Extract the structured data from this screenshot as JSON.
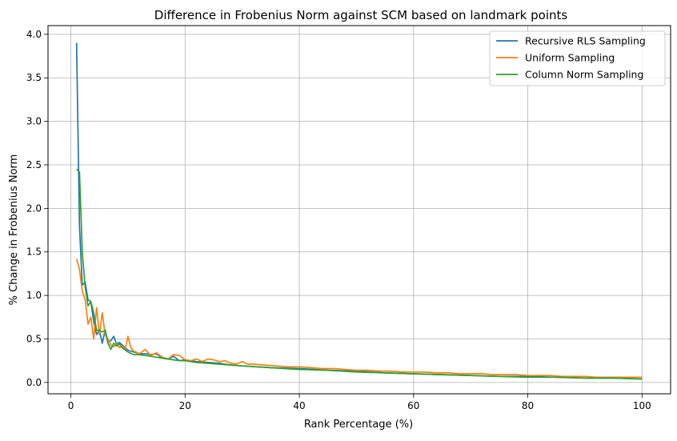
{
  "chart_data": {
    "type": "line",
    "title": "Difference in Frobenius Norm against SCM based on landmark points",
    "xlabel": "Rank Percentage (%)",
    "ylabel": "% Change in Frobenius Norm",
    "xlim": [
      -4.0,
      105.0
    ],
    "ylim": [
      -0.13,
      4.1
    ],
    "xticks": [
      0,
      20,
      40,
      60,
      80,
      100
    ],
    "yticks": [
      0.0,
      0.5,
      1.0,
      1.5,
      2.0,
      2.5,
      3.0,
      3.5,
      4.0
    ],
    "xtick_labels": [
      "0",
      "20",
      "40",
      "60",
      "80",
      "100"
    ],
    "ytick_labels": [
      "0.0",
      "0.5",
      "1.0",
      "1.5",
      "2.0",
      "2.5",
      "3.0",
      "3.5",
      "4.0"
    ],
    "grid": true,
    "legend_position": "top-right",
    "series": [
      {
        "name": "Recursive RLS Sampling",
        "color": "#1f77b4",
        "x": [
          1,
          1.5,
          2,
          2.5,
          3,
          3.5,
          4,
          4.5,
          5,
          5.5,
          6,
          6.5,
          7,
          7.5,
          8,
          8.5,
          9,
          10,
          11,
          12,
          13,
          14,
          15,
          16,
          17,
          18,
          19,
          20,
          22,
          24,
          26,
          28,
          30,
          35,
          40,
          45,
          50,
          55,
          60,
          65,
          70,
          75,
          80,
          85,
          90,
          95,
          100
        ],
        "y": [
          3.9,
          1.8,
          1.12,
          1.15,
          0.95,
          0.93,
          0.7,
          0.55,
          0.6,
          0.45,
          0.6,
          0.47,
          0.48,
          0.53,
          0.44,
          0.46,
          0.43,
          0.37,
          0.35,
          0.33,
          0.33,
          0.32,
          0.33,
          0.28,
          0.27,
          0.3,
          0.25,
          0.26,
          0.24,
          0.23,
          0.22,
          0.2,
          0.19,
          0.17,
          0.16,
          0.14,
          0.13,
          0.11,
          0.1,
          0.09,
          0.08,
          0.07,
          0.07,
          0.06,
          0.05,
          0.05,
          0.04
        ]
      },
      {
        "name": "Uniform Sampling",
        "color": "#ff7f0e",
        "x": [
          1,
          1.5,
          2,
          2.5,
          3,
          3.5,
          4,
          4.5,
          5,
          5.5,
          6,
          6.5,
          7,
          7.5,
          8,
          8.5,
          9,
          9.5,
          10,
          10.5,
          11,
          12,
          13,
          14,
          15,
          16,
          17,
          18,
          19,
          20,
          21,
          22,
          23,
          24,
          25,
          26,
          27,
          28,
          29,
          30,
          31,
          32,
          34,
          36,
          38,
          40,
          42,
          44,
          46,
          48,
          50,
          52,
          54,
          56,
          58,
          60,
          62,
          64,
          66,
          68,
          70,
          72,
          74,
          76,
          78,
          80,
          82,
          84,
          86,
          88,
          90,
          92,
          94,
          96,
          98,
          100
        ],
        "y": [
          1.42,
          1.3,
          1.05,
          0.95,
          0.67,
          0.75,
          0.5,
          0.86,
          0.55,
          0.8,
          0.55,
          0.5,
          0.43,
          0.41,
          0.44,
          0.4,
          0.42,
          0.38,
          0.53,
          0.4,
          0.36,
          0.33,
          0.38,
          0.31,
          0.34,
          0.29,
          0.27,
          0.32,
          0.31,
          0.26,
          0.25,
          0.27,
          0.24,
          0.27,
          0.26,
          0.24,
          0.25,
          0.22,
          0.21,
          0.24,
          0.21,
          0.21,
          0.2,
          0.19,
          0.18,
          0.18,
          0.17,
          0.16,
          0.16,
          0.15,
          0.14,
          0.14,
          0.13,
          0.13,
          0.12,
          0.12,
          0.12,
          0.11,
          0.11,
          0.1,
          0.1,
          0.1,
          0.09,
          0.09,
          0.09,
          0.08,
          0.08,
          0.08,
          0.07,
          0.07,
          0.07,
          0.06,
          0.06,
          0.06,
          0.06,
          0.06
        ]
      },
      {
        "name": "Column Norm Sampling",
        "color": "#2ca02c",
        "x": [
          1,
          1.5,
          2,
          2.5,
          3,
          3.5,
          4,
          4.5,
          5,
          5.5,
          6,
          6.5,
          7,
          7.5,
          8,
          8.5,
          9,
          10,
          11,
          12,
          13,
          14,
          15,
          16,
          17,
          18,
          19,
          20,
          22,
          24,
          26,
          28,
          30,
          35,
          40,
          45,
          50,
          55,
          60,
          65,
          70,
          75,
          80,
          85,
          90,
          95,
          100
        ],
        "y": [
          2.45,
          2.42,
          1.5,
          1.1,
          0.88,
          0.93,
          0.8,
          0.6,
          0.6,
          0.58,
          0.6,
          0.45,
          0.38,
          0.45,
          0.42,
          0.44,
          0.4,
          0.35,
          0.32,
          0.32,
          0.31,
          0.3,
          0.29,
          0.28,
          0.27,
          0.26,
          0.25,
          0.25,
          0.23,
          0.22,
          0.21,
          0.2,
          0.19,
          0.17,
          0.15,
          0.14,
          0.12,
          0.11,
          0.1,
          0.09,
          0.08,
          0.07,
          0.06,
          0.06,
          0.05,
          0.05,
          0.04
        ]
      }
    ]
  }
}
